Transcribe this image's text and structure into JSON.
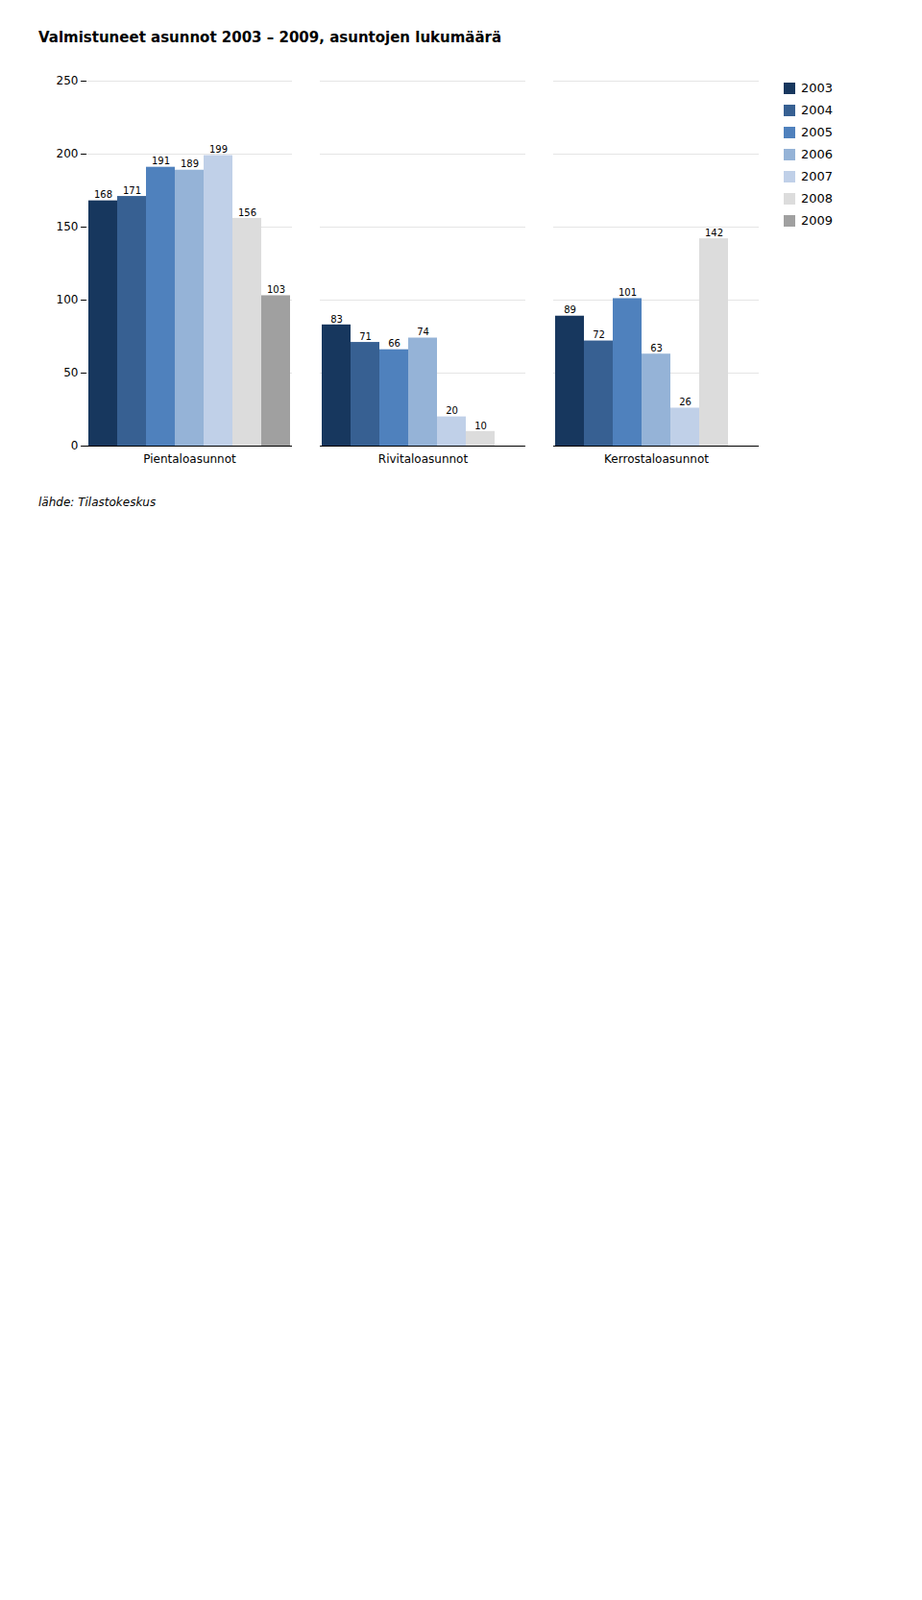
{
  "chart_data": {
    "type": "bar",
    "title": "Valmistuneet asunnot 2003 – 2009, asuntojen lukumäärä",
    "categories": [
      "Pientaloasunnot",
      "Rivitaloasunnot",
      "Kerrostaloasunnot"
    ],
    "series": [
      {
        "name": "2003",
        "color": "#17375E",
        "values": [
          168,
          83,
          89
        ]
      },
      {
        "name": "2004",
        "color": "#376092",
        "values": [
          171,
          71,
          72
        ]
      },
      {
        "name": "2005",
        "color": "#4F81BD",
        "values": [
          191,
          66,
          101
        ]
      },
      {
        "name": "2006",
        "color": "#95B3D7",
        "values": [
          189,
          74,
          63
        ]
      },
      {
        "name": "2007",
        "color": "#C0D0E8",
        "values": [
          199,
          20,
          26
        ]
      },
      {
        "name": "2008",
        "color": "#DCDCDC",
        "values": [
          156,
          10,
          142
        ]
      },
      {
        "name": "2009",
        "color": "#A0A0A0",
        "values": [
          103,
          null,
          null
        ]
      }
    ],
    "ylim": [
      0,
      250
    ],
    "yticks": [
      0,
      50,
      100,
      150,
      200,
      250
    ],
    "grid": true,
    "data_labels": true,
    "legend": "right",
    "source": "lähde: Tilastokeskus"
  }
}
